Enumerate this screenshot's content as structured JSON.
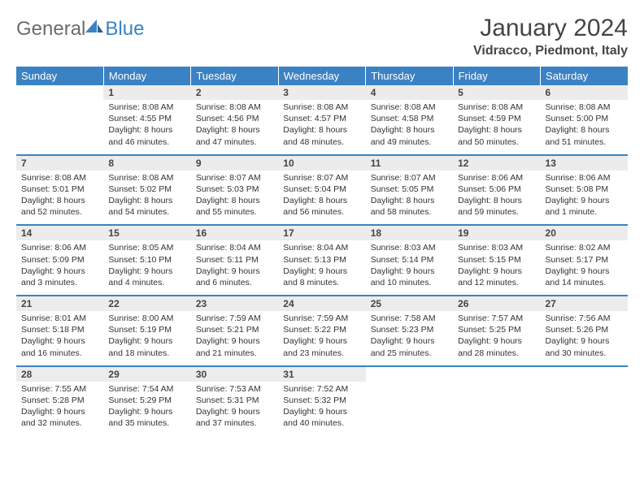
{
  "brand": {
    "word1": "General",
    "word2": "Blue",
    "color1": "#6b6b6b",
    "color2": "#3b82c4"
  },
  "title": "January 2024",
  "location": "Vidracco, Piedmont, Italy",
  "header_bg": "#3b82c4",
  "daynum_bg": "#ececec",
  "weekdays": [
    "Sunday",
    "Monday",
    "Tuesday",
    "Wednesday",
    "Thursday",
    "Friday",
    "Saturday"
  ],
  "weeks": [
    [
      null,
      {
        "n": "1",
        "sr": "Sunrise: 8:08 AM",
        "ss": "Sunset: 4:55 PM",
        "dl": "Daylight: 8 hours and 46 minutes."
      },
      {
        "n": "2",
        "sr": "Sunrise: 8:08 AM",
        "ss": "Sunset: 4:56 PM",
        "dl": "Daylight: 8 hours and 47 minutes."
      },
      {
        "n": "3",
        "sr": "Sunrise: 8:08 AM",
        "ss": "Sunset: 4:57 PM",
        "dl": "Daylight: 8 hours and 48 minutes."
      },
      {
        "n": "4",
        "sr": "Sunrise: 8:08 AM",
        "ss": "Sunset: 4:58 PM",
        "dl": "Daylight: 8 hours and 49 minutes."
      },
      {
        "n": "5",
        "sr": "Sunrise: 8:08 AM",
        "ss": "Sunset: 4:59 PM",
        "dl": "Daylight: 8 hours and 50 minutes."
      },
      {
        "n": "6",
        "sr": "Sunrise: 8:08 AM",
        "ss": "Sunset: 5:00 PM",
        "dl": "Daylight: 8 hours and 51 minutes."
      }
    ],
    [
      {
        "n": "7",
        "sr": "Sunrise: 8:08 AM",
        "ss": "Sunset: 5:01 PM",
        "dl": "Daylight: 8 hours and 52 minutes."
      },
      {
        "n": "8",
        "sr": "Sunrise: 8:08 AM",
        "ss": "Sunset: 5:02 PM",
        "dl": "Daylight: 8 hours and 54 minutes."
      },
      {
        "n": "9",
        "sr": "Sunrise: 8:07 AM",
        "ss": "Sunset: 5:03 PM",
        "dl": "Daylight: 8 hours and 55 minutes."
      },
      {
        "n": "10",
        "sr": "Sunrise: 8:07 AM",
        "ss": "Sunset: 5:04 PM",
        "dl": "Daylight: 8 hours and 56 minutes."
      },
      {
        "n": "11",
        "sr": "Sunrise: 8:07 AM",
        "ss": "Sunset: 5:05 PM",
        "dl": "Daylight: 8 hours and 58 minutes."
      },
      {
        "n": "12",
        "sr": "Sunrise: 8:06 AM",
        "ss": "Sunset: 5:06 PM",
        "dl": "Daylight: 8 hours and 59 minutes."
      },
      {
        "n": "13",
        "sr": "Sunrise: 8:06 AM",
        "ss": "Sunset: 5:08 PM",
        "dl": "Daylight: 9 hours and 1 minute."
      }
    ],
    [
      {
        "n": "14",
        "sr": "Sunrise: 8:06 AM",
        "ss": "Sunset: 5:09 PM",
        "dl": "Daylight: 9 hours and 3 minutes."
      },
      {
        "n": "15",
        "sr": "Sunrise: 8:05 AM",
        "ss": "Sunset: 5:10 PM",
        "dl": "Daylight: 9 hours and 4 minutes."
      },
      {
        "n": "16",
        "sr": "Sunrise: 8:04 AM",
        "ss": "Sunset: 5:11 PM",
        "dl": "Daylight: 9 hours and 6 minutes."
      },
      {
        "n": "17",
        "sr": "Sunrise: 8:04 AM",
        "ss": "Sunset: 5:13 PM",
        "dl": "Daylight: 9 hours and 8 minutes."
      },
      {
        "n": "18",
        "sr": "Sunrise: 8:03 AM",
        "ss": "Sunset: 5:14 PM",
        "dl": "Daylight: 9 hours and 10 minutes."
      },
      {
        "n": "19",
        "sr": "Sunrise: 8:03 AM",
        "ss": "Sunset: 5:15 PM",
        "dl": "Daylight: 9 hours and 12 minutes."
      },
      {
        "n": "20",
        "sr": "Sunrise: 8:02 AM",
        "ss": "Sunset: 5:17 PM",
        "dl": "Daylight: 9 hours and 14 minutes."
      }
    ],
    [
      {
        "n": "21",
        "sr": "Sunrise: 8:01 AM",
        "ss": "Sunset: 5:18 PM",
        "dl": "Daylight: 9 hours and 16 minutes."
      },
      {
        "n": "22",
        "sr": "Sunrise: 8:00 AM",
        "ss": "Sunset: 5:19 PM",
        "dl": "Daylight: 9 hours and 18 minutes."
      },
      {
        "n": "23",
        "sr": "Sunrise: 7:59 AM",
        "ss": "Sunset: 5:21 PM",
        "dl": "Daylight: 9 hours and 21 minutes."
      },
      {
        "n": "24",
        "sr": "Sunrise: 7:59 AM",
        "ss": "Sunset: 5:22 PM",
        "dl": "Daylight: 9 hours and 23 minutes."
      },
      {
        "n": "25",
        "sr": "Sunrise: 7:58 AM",
        "ss": "Sunset: 5:23 PM",
        "dl": "Daylight: 9 hours and 25 minutes."
      },
      {
        "n": "26",
        "sr": "Sunrise: 7:57 AM",
        "ss": "Sunset: 5:25 PM",
        "dl": "Daylight: 9 hours and 28 minutes."
      },
      {
        "n": "27",
        "sr": "Sunrise: 7:56 AM",
        "ss": "Sunset: 5:26 PM",
        "dl": "Daylight: 9 hours and 30 minutes."
      }
    ],
    [
      {
        "n": "28",
        "sr": "Sunrise: 7:55 AM",
        "ss": "Sunset: 5:28 PM",
        "dl": "Daylight: 9 hours and 32 minutes."
      },
      {
        "n": "29",
        "sr": "Sunrise: 7:54 AM",
        "ss": "Sunset: 5:29 PM",
        "dl": "Daylight: 9 hours and 35 minutes."
      },
      {
        "n": "30",
        "sr": "Sunrise: 7:53 AM",
        "ss": "Sunset: 5:31 PM",
        "dl": "Daylight: 9 hours and 37 minutes."
      },
      {
        "n": "31",
        "sr": "Sunrise: 7:52 AM",
        "ss": "Sunset: 5:32 PM",
        "dl": "Daylight: 9 hours and 40 minutes."
      },
      null,
      null,
      null
    ]
  ]
}
